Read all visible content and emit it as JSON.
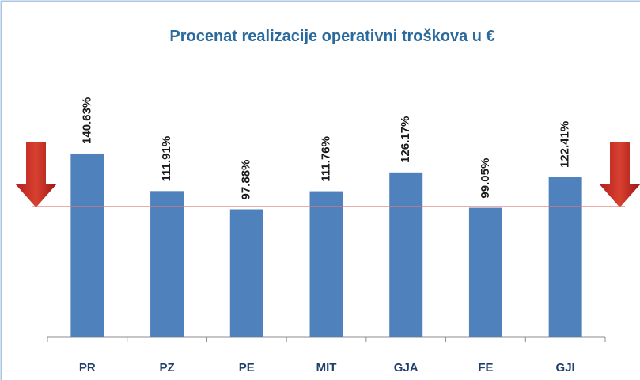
{
  "chart_data": {
    "type": "bar",
    "title": "Procenat realizacije operativni troškova u €",
    "categories": [
      "PR",
      "PZ",
      "PE",
      "MIT",
      "GJA",
      "FE",
      "GJI"
    ],
    "values": [
      140.63,
      111.91,
      97.88,
      111.76,
      126.17,
      99.05,
      122.41
    ],
    "value_labels": [
      "140.63%",
      "111.91%",
      "97.88%",
      "111.76%",
      "126.17%",
      "99.05%",
      "122.41%"
    ],
    "color": "#4f81bd",
    "ylim": [
      0,
      160
    ],
    "reference_line": {
      "value": 100,
      "color": "#e07a7a"
    }
  }
}
